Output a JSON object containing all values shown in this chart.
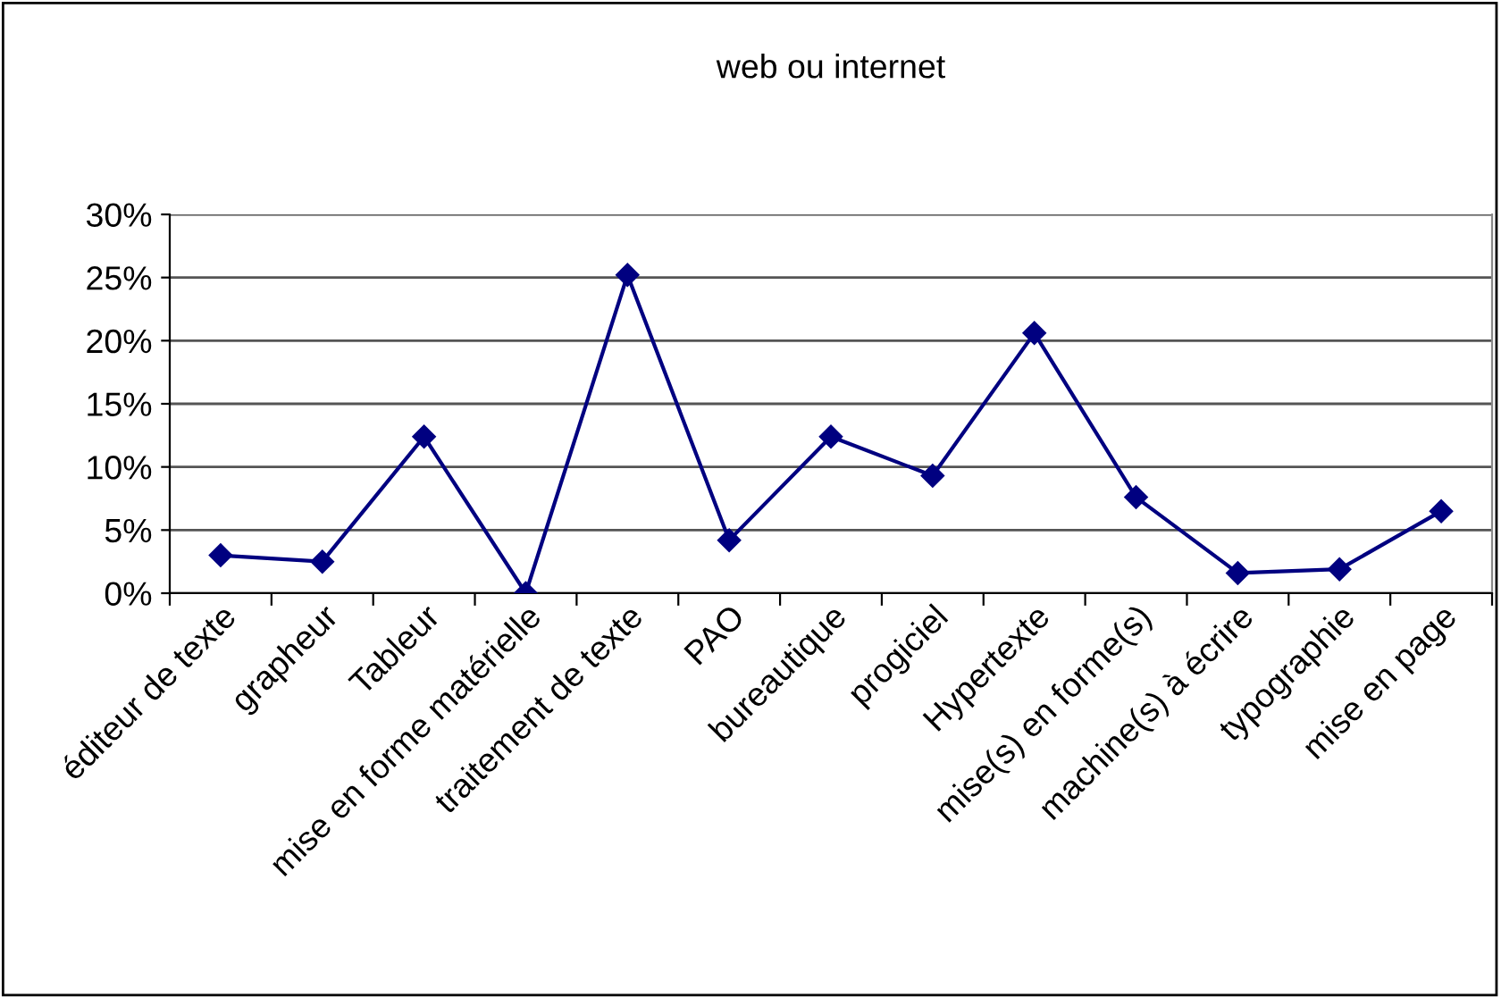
{
  "chart_data": {
    "type": "line",
    "title": "web ou internet",
    "categories": [
      "éditeur de texte",
      "grapheur",
      "Tableur",
      "mise en forme matérielle",
      "traitement de texte",
      "PAO",
      "bureautique",
      "progiciel",
      "Hypertexte",
      "mise(s) en forme(s)",
      "machine(s) à écrire",
      "typographie",
      "mise en page"
    ],
    "series": [
      {
        "color": "#000080",
        "values": [
          3.0,
          2.5,
          12.4,
          0,
          25.2,
          4.2,
          12.4,
          9.3,
          20.6,
          7.6,
          1.6,
          1.9,
          6.5
        ]
      }
    ],
    "ylim": [
      0,
      30
    ],
    "yticks": [
      {
        "value": 0,
        "label": "0%"
      },
      {
        "value": 5,
        "label": "5%"
      },
      {
        "value": 10,
        "label": "10%"
      },
      {
        "value": 15,
        "label": "15%"
      },
      {
        "value": 20,
        "label": "20%"
      },
      {
        "value": 25,
        "label": "25%"
      },
      {
        "value": 30,
        "label": "30%"
      }
    ],
    "grid": "y",
    "marker": "diamond",
    "line_style": "solid"
  }
}
